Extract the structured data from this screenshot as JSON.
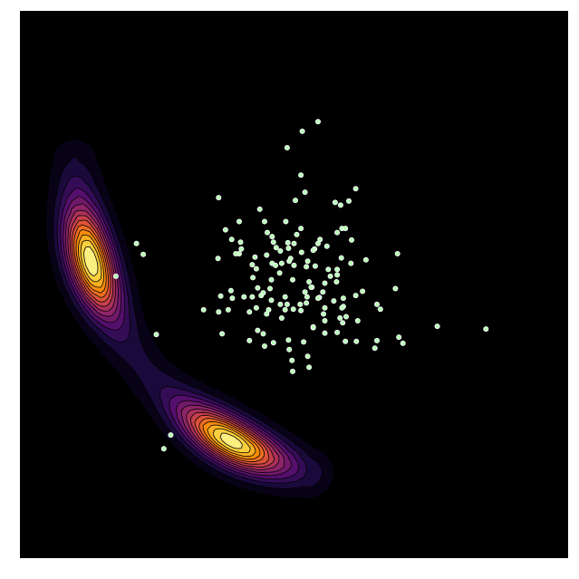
{
  "chart_data": {
    "type": "scatter",
    "title": "",
    "xlabel": "",
    "ylabel": "",
    "xlim": [
      -4,
      4
    ],
    "ylim": [
      -4,
      4
    ],
    "grid": false,
    "axes_visible": false,
    "background_color": "#000000",
    "density": {
      "type": "contour",
      "colormap": "inferno",
      "levels": 14,
      "line_color": "#000000",
      "shape": "banana",
      "ridge": {
        "start": [
          -3.2,
          1.8
        ],
        "bend": [
          -3.0,
          -1.8
        ],
        "end": [
          0.2,
          -2.75
        ]
      },
      "peaks": [
        {
          "x": -2.95,
          "y": 0.35,
          "amplitude": 1.0
        },
        {
          "x": -1.05,
          "y": -2.55,
          "amplitude": 0.98
        }
      ]
    },
    "scatter": {
      "marker": "circle",
      "fill_color": "#b6ffb6",
      "edge_color": "#ffffff",
      "count": 150,
      "points": [
        [
          -1.1,
          1.27
        ],
        [
          -2.3,
          0.6
        ],
        [
          -1.9,
          -2.4
        ],
        [
          -1.8,
          -2.2
        ],
        [
          -0.1,
          2.0
        ],
        [
          0.1,
          1.6
        ],
        [
          0.6,
          1.2
        ],
        [
          0.9,
          1.4
        ],
        [
          -0.5,
          1.1
        ],
        [
          0.0,
          0.6
        ],
        [
          0.12,
          2.24
        ],
        [
          0.35,
          2.38
        ],
        [
          0.8,
          1.22
        ],
        [
          0.7,
          0.82
        ],
        [
          0.68,
          1.16
        ],
        [
          -0.78,
          0.62
        ],
        [
          0.75,
          0.82
        ],
        [
          1.05,
          0.36
        ],
        [
          -2.01,
          -0.73
        ],
        [
          -0.8,
          0.45
        ],
        [
          -0.4,
          0.43
        ],
        [
          1.48,
          -0.06
        ],
        [
          1.53,
          -0.77
        ],
        [
          1.59,
          -0.86
        ],
        [
          2.09,
          -0.61
        ],
        [
          0.84,
          0.65
        ],
        [
          1.51,
          0.45
        ],
        [
          -0.18,
          -0.49
        ],
        [
          2.8,
          -0.65
        ],
        [
          -1.1,
          -0.4
        ],
        [
          0.45,
          -0.71
        ],
        [
          -2.2,
          0.44
        ],
        [
          -2.6,
          0.12
        ],
        [
          0.63,
          0.14
        ],
        [
          0.18,
          0.26
        ],
        [
          -0.07,
          0.34
        ],
        [
          0.48,
          0.56
        ],
        [
          -0.61,
          -0.18
        ],
        [
          0.19,
          -0.18
        ],
        [
          0.37,
          -0.19
        ],
        [
          -0.13,
          -0.18
        ],
        [
          0.72,
          -0.32
        ],
        [
          0.09,
          -0.29
        ],
        [
          -0.35,
          -0.06
        ],
        [
          -0.2,
          -0.29
        ],
        [
          0.42,
          -0.11
        ],
        [
          -0.33,
          0.07
        ],
        [
          -0.02,
          0.07
        ],
        [
          0.22,
          0.04
        ],
        [
          0.5,
          0.22
        ],
        [
          -0.61,
          0.29
        ],
        [
          0.0,
          0.28
        ],
        [
          0.31,
          0.27
        ],
        [
          -0.01,
          -0.36
        ],
        [
          -0.37,
          -0.37
        ],
        [
          0.45,
          0.02
        ],
        [
          -0.53,
          -0.05
        ],
        [
          0.1,
          0.82
        ],
        [
          -0.6,
          0.1
        ],
        [
          -0.26,
          0.54
        ],
        [
          -0.9,
          -0.2
        ],
        [
          -0.12,
          0.92
        ],
        [
          0.22,
          -1.21
        ],
        [
          0.2,
          0.34
        ],
        [
          -0.2,
          0.49
        ],
        [
          -0.4,
          -0.43
        ],
        [
          0.16,
          -0.11
        ],
        [
          0.1,
          -0.38
        ],
        [
          -0.55,
          0.23
        ],
        [
          -0.21,
          0.17
        ],
        [
          -0.32,
          0.31
        ],
        [
          -0.48,
          -0.16
        ],
        [
          0.26,
          -0.04
        ],
        [
          0.04,
          0.73
        ],
        [
          -0.05,
          0.38
        ],
        [
          0.35,
          -0.2
        ],
        [
          -0.33,
          -0.23
        ],
        [
          -0.55,
          -0.34
        ],
        [
          -0.92,
          -0.09
        ],
        [
          -0.8,
          0.92
        ],
        [
          -0.39,
          0.76
        ],
        [
          -0.77,
          0.52
        ],
        [
          0.76,
          -0.47
        ],
        [
          0.67,
          -0.49
        ],
        [
          -0.08,
          0.53
        ],
        [
          0.7,
          -0.34
        ],
        [
          0.3,
          0.52
        ],
        [
          -0.08,
          -0.81
        ],
        [
          1.21,
          -0.29
        ],
        [
          0.28,
          0.5
        ],
        [
          0.62,
          0.04
        ],
        [
          -0.1,
          -0.29
        ],
        [
          0.11,
          0.47
        ],
        [
          -0.45,
          -0.72
        ],
        [
          0.28,
          -0.63
        ],
        [
          -0.57,
          0.4
        ],
        [
          -0.09,
          0.61
        ],
        [
          -0.91,
          0.66
        ],
        [
          0.93,
          -0.53
        ],
        [
          0.02,
          1.23
        ],
        [
          0.71,
          -0.56
        ],
        [
          -1.11,
          0.38
        ],
        [
          0.28,
          -0.62
        ],
        [
          0.45,
          -0.34
        ],
        [
          0.63,
          0.76
        ],
        [
          -0.27,
          0.28
        ],
        [
          1.21,
          -0.82
        ],
        [
          1.26,
          -0.36
        ],
        [
          -0.65,
          -0.82
        ],
        [
          0.18,
          -0.27
        ],
        [
          0.53,
          0.12
        ],
        [
          -0.73,
          -0.18
        ],
        [
          1.18,
          -0.93
        ],
        [
          0.91,
          -0.83
        ],
        [
          0.83,
          0.31
        ],
        [
          -0.43,
          0.92
        ],
        [
          0.16,
          1.35
        ],
        [
          0.9,
          -0.16
        ],
        [
          -0.3,
          -0.85
        ],
        [
          0.25,
          -0.04
        ],
        [
          0.63,
          0.22
        ],
        [
          0.43,
          -0.43
        ],
        [
          0.63,
          -0.7
        ],
        [
          0.35,
          0.6
        ],
        [
          -0.13,
          -0.37
        ],
        [
          0.14,
          -0.84
        ],
        [
          -1.07,
          -0.17
        ],
        [
          -1.05,
          -0.72
        ],
        [
          -0.53,
          -0.67
        ],
        [
          -0.03,
          -1.11
        ],
        [
          0.45,
          -0.53
        ],
        [
          0.58,
          -0.24
        ],
        [
          0.2,
          -1.05
        ],
        [
          -0.3,
          0.62
        ],
        [
          0.75,
          -0.83
        ],
        [
          -0.85,
          0.45
        ],
        [
          -0.32,
          0.7
        ],
        [
          -0.07,
          -0.95
        ],
        [
          -0.43,
          -0.9
        ],
        [
          0.38,
          0.66
        ],
        [
          -1.0,
          0.8
        ],
        [
          0.72,
          -0.2
        ],
        [
          -0.96,
          -0.37
        ],
        [
          -0.65,
          -0.4
        ],
        [
          -0.02,
          -1.27
        ],
        [
          -1.32,
          -0.37
        ],
        [
          1.0,
          -0.1
        ],
        [
          -0.18,
          0.31
        ],
        [
          0.69,
          0.39
        ],
        [
          -0.45,
          -0.12
        ]
      ]
    }
  }
}
